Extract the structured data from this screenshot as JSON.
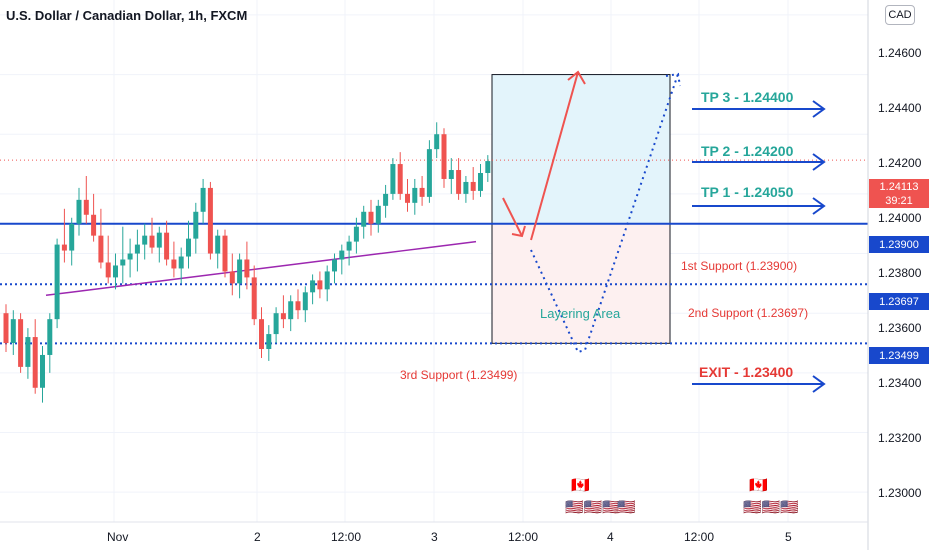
{
  "header": {
    "title": "U.S. Dollar / Canadian Dollar, 1h, FXCM",
    "currency": "CAD"
  },
  "chart_data": {
    "type": "candlestick",
    "ylim": [
      1.229,
      1.2465
    ],
    "y_ticks": [
      "1.24600",
      "1.24400",
      "1.24200",
      "1.24000",
      "1.23800",
      "1.23600",
      "1.23400",
      "1.23200",
      "1.23000"
    ],
    "x_ticks": [
      "Nov",
      "2",
      "12:00",
      "3",
      "12:00",
      "4",
      "12:00",
      "5"
    ],
    "current_price": "1.24113",
    "countdown": "39:21",
    "candles": [
      [
        1.236,
        1.2363,
        1.2347,
        1.235
      ],
      [
        1.235,
        1.2361,
        1.2346,
        1.2358
      ],
      [
        1.2358,
        1.236,
        1.234,
        1.2342
      ],
      [
        1.2342,
        1.2355,
        1.2338,
        1.2352
      ],
      [
        1.2352,
        1.2358,
        1.2333,
        1.2335
      ],
      [
        1.2335,
        1.2349,
        1.233,
        1.2346
      ],
      [
        1.2346,
        1.236,
        1.234,
        1.2358
      ],
      [
        1.2358,
        1.2385,
        1.2355,
        1.2383
      ],
      [
        1.2383,
        1.2395,
        1.2377,
        1.2381
      ],
      [
        1.2381,
        1.2392,
        1.2376,
        1.239
      ],
      [
        1.239,
        1.2402,
        1.2386,
        1.2398
      ],
      [
        1.2398,
        1.2406,
        1.239,
        1.2393
      ],
      [
        1.2393,
        1.24,
        1.2384,
        1.2386
      ],
      [
        1.2386,
        1.2395,
        1.2375,
        1.2377
      ],
      [
        1.2377,
        1.2386,
        1.237,
        1.2372
      ],
      [
        1.2372,
        1.238,
        1.2368,
        1.2376
      ],
      [
        1.2376,
        1.2389,
        1.237,
        1.2378
      ],
      [
        1.2378,
        1.2385,
        1.2372,
        1.238
      ],
      [
        1.238,
        1.2388,
        1.2374,
        1.2383
      ],
      [
        1.2383,
        1.239,
        1.2378,
        1.2386
      ],
      [
        1.2386,
        1.2392,
        1.238,
        1.2382
      ],
      [
        1.2382,
        1.2389,
        1.2377,
        1.2387
      ],
      [
        1.2387,
        1.2391,
        1.2376,
        1.2378
      ],
      [
        1.2378,
        1.2384,
        1.2372,
        1.2375
      ],
      [
        1.2375,
        1.2382,
        1.237,
        1.2379
      ],
      [
        1.2379,
        1.2391,
        1.2375,
        1.2385
      ],
      [
        1.2385,
        1.2397,
        1.238,
        1.2394
      ],
      [
        1.2394,
        1.2405,
        1.239,
        1.2402
      ],
      [
        1.2402,
        1.2404,
        1.2378,
        1.238
      ],
      [
        1.238,
        1.2388,
        1.2375,
        1.2386
      ],
      [
        1.2386,
        1.2388,
        1.2372,
        1.2374
      ],
      [
        1.2374,
        1.238,
        1.2366,
        1.237
      ],
      [
        1.237,
        1.238,
        1.2365,
        1.2378
      ],
      [
        1.2378,
        1.2384,
        1.2368,
        1.2372
      ],
      [
        1.2372,
        1.2376,
        1.2356,
        1.2358
      ],
      [
        1.2358,
        1.2362,
        1.2345,
        1.2348
      ],
      [
        1.2348,
        1.2356,
        1.2344,
        1.2353
      ],
      [
        1.2353,
        1.2362,
        1.235,
        1.236
      ],
      [
        1.236,
        1.2366,
        1.2355,
        1.2358
      ],
      [
        1.2358,
        1.2366,
        1.2354,
        1.2364
      ],
      [
        1.2364,
        1.2368,
        1.2358,
        1.2361
      ],
      [
        1.2361,
        1.2369,
        1.2357,
        1.2367
      ],
      [
        1.2367,
        1.2373,
        1.2363,
        1.2371
      ],
      [
        1.2371,
        1.2374,
        1.2365,
        1.2368
      ],
      [
        1.2368,
        1.2376,
        1.2364,
        1.2374
      ],
      [
        1.2374,
        1.238,
        1.237,
        1.2378
      ],
      [
        1.2378,
        1.2383,
        1.2373,
        1.2381
      ],
      [
        1.2381,
        1.2386,
        1.2376,
        1.2384
      ],
      [
        1.2384,
        1.2392,
        1.238,
        1.2389
      ],
      [
        1.2389,
        1.2396,
        1.2385,
        1.2394
      ],
      [
        1.2394,
        1.2398,
        1.2386,
        1.239
      ],
      [
        1.239,
        1.2398,
        1.2387,
        1.2396
      ],
      [
        1.2396,
        1.2403,
        1.2392,
        1.24
      ],
      [
        1.24,
        1.2412,
        1.2398,
        1.241
      ],
      [
        1.241,
        1.2414,
        1.2398,
        1.24
      ],
      [
        1.24,
        1.2405,
        1.2394,
        1.2397
      ],
      [
        1.2397,
        1.2405,
        1.2393,
        1.2402
      ],
      [
        1.2402,
        1.2406,
        1.2396,
        1.2399
      ],
      [
        1.2399,
        1.2418,
        1.2397,
        1.2415
      ],
      [
        1.2415,
        1.2424,
        1.2412,
        1.242
      ],
      [
        1.242,
        1.2422,
        1.2402,
        1.2405
      ],
      [
        1.2405,
        1.2412,
        1.24,
        1.2408
      ],
      [
        1.2408,
        1.2412,
        1.2398,
        1.24
      ],
      [
        1.24,
        1.2406,
        1.2397,
        1.2404
      ],
      [
        1.2404,
        1.2409,
        1.2398,
        1.2401
      ],
      [
        1.2401,
        1.241,
        1.2399,
        1.2407
      ],
      [
        1.2407,
        1.2413,
        1.2404,
        1.2411
      ]
    ],
    "ma_series": {
      "name": "",
      "values": [
        1.2366,
        1.2367,
        1.2368,
        1.2369,
        1.237,
        1.2371,
        1.2372,
        1.2373,
        1.2374,
        1.2375,
        1.2376,
        1.2377,
        1.2378,
        1.2379,
        1.238,
        1.2381,
        1.2382,
        1.2383,
        1.2384
      ]
    },
    "levels": [
      {
        "price": "1.23900",
        "style": "solid",
        "color": "#1848cc"
      },
      {
        "price": "1.23697",
        "style": "dotted",
        "color": "#1848cc"
      },
      {
        "price": "1.23499",
        "style": "dotted",
        "color": "#1848cc"
      }
    ],
    "targets": [
      {
        "label": "TP 3 - 1.24400",
        "color": "#26a69a",
        "price": 1.244
      },
      {
        "label": "TP 2 - 1.24200",
        "color": "#26a69a",
        "price": 1.242
      },
      {
        "label": "TP 1 - 1.24050",
        "color": "#26a69a",
        "price": 1.2405
      },
      {
        "label": "EXIT - 1.23400",
        "color": "#e53935",
        "price": 1.234
      }
    ],
    "supports": {
      "first": "1st Support (1.23900)",
      "second": "2nd Support (1.23697)",
      "third": "3rd Support (1.23499)"
    },
    "zone_label": "Layering Area",
    "colors": {
      "up": "#26a69a",
      "down": "#ef5350",
      "ma": "#9c27b0",
      "line": "#1848cc",
      "tp": "#26a69a",
      "exit": "#e53935"
    }
  }
}
